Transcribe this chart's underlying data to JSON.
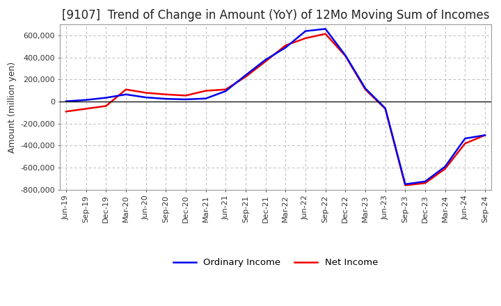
{
  "title": "[9107]  Trend of Change in Amount (YoY) of 12Mo Moving Sum of Incomes",
  "ylabel": "Amount (million yen)",
  "ylim": [
    -800000,
    700000
  ],
  "yticks": [
    -800000,
    -600000,
    -400000,
    -200000,
    0,
    200000,
    400000,
    600000
  ],
  "background_color": "#FFFFFF",
  "plot_bg_color": "#FFFFFF",
  "grid_color": "#BBBBBB",
  "title_fontsize": 12,
  "label_fontsize": 9,
  "tick_fontsize": 8,
  "x_labels": [
    "Jun-19",
    "Sep-19",
    "Dec-19",
    "Mar-20",
    "Jun-20",
    "Sep-20",
    "Dec-20",
    "Mar-21",
    "Jun-21",
    "Sep-21",
    "Dec-21",
    "Mar-22",
    "Jun-22",
    "Sep-22",
    "Dec-22",
    "Mar-23",
    "Jun-23",
    "Sep-23",
    "Dec-23",
    "Mar-24",
    "Jun-24",
    "Sep-24"
  ],
  "ordinary_income": [
    3000,
    15000,
    35000,
    65000,
    38000,
    25000,
    20000,
    28000,
    95000,
    240000,
    380000,
    490000,
    640000,
    660000,
    420000,
    120000,
    -60000,
    -750000,
    -725000,
    -590000,
    -335000,
    -305000
  ],
  "net_income": [
    -90000,
    -65000,
    -40000,
    110000,
    80000,
    65000,
    55000,
    98000,
    110000,
    225000,
    365000,
    510000,
    575000,
    615000,
    415000,
    110000,
    -65000,
    -760000,
    -740000,
    -610000,
    -380000,
    -305000
  ],
  "ordinary_color": "#0000EE",
  "net_color": "#EE0000",
  "line_width": 1.8,
  "legend_ordinary": "Ordinary Income",
  "legend_net": "Net Income"
}
